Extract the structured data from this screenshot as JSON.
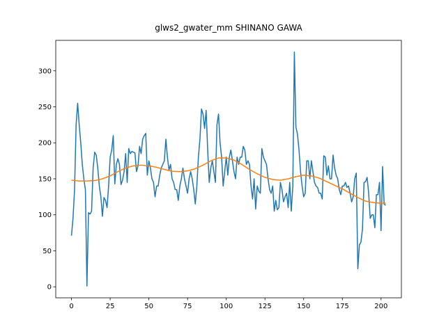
{
  "chart_data": {
    "type": "line",
    "title": "glws2_gwater_mm SHINANO GAWA",
    "xlim": [
      -10.15,
      213.15
    ],
    "ylim": [
      -15.3,
      342.3
    ],
    "xticks": [
      0,
      25,
      50,
      75,
      100,
      125,
      150,
      175,
      200
    ],
    "yticks": [
      0,
      50,
      100,
      150,
      200,
      250,
      300
    ],
    "grid": false,
    "series": [
      {
        "color": "#1f77b4",
        "x": [
          0,
          1,
          2,
          3,
          4,
          5,
          6,
          7,
          8,
          9,
          10,
          11,
          12,
          13,
          14,
          15,
          16,
          17,
          18,
          19,
          20,
          21,
          22,
          23,
          24,
          25,
          26,
          27,
          28,
          29,
          30,
          31,
          32,
          33,
          34,
          35,
          36,
          37,
          38,
          39,
          40,
          41,
          42,
          43,
          44,
          45,
          46,
          47,
          48,
          49,
          50,
          51,
          52,
          53,
          54,
          55,
          56,
          57,
          58,
          59,
          60,
          61,
          62,
          63,
          64,
          65,
          66,
          67,
          68,
          69,
          70,
          71,
          72,
          73,
          74,
          75,
          76,
          77,
          78,
          79,
          80,
          81,
          82,
          83,
          84,
          85,
          86,
          87,
          88,
          89,
          90,
          91,
          92,
          93,
          94,
          95,
          96,
          97,
          98,
          99,
          100,
          101,
          102,
          103,
          104,
          105,
          106,
          107,
          108,
          109,
          110,
          111,
          112,
          113,
          114,
          115,
          116,
          117,
          118,
          119,
          120,
          121,
          122,
          123,
          124,
          125,
          126,
          127,
          128,
          129,
          130,
          131,
          132,
          133,
          134,
          135,
          136,
          137,
          138,
          139,
          140,
          141,
          142,
          143,
          144,
          145,
          146,
          147,
          148,
          149,
          150,
          151,
          152,
          153,
          154,
          155,
          156,
          157,
          158,
          159,
          160,
          161,
          162,
          163,
          164,
          165,
          166,
          167,
          168,
          169,
          170,
          171,
          172,
          173,
          174,
          175,
          176,
          177,
          178,
          179,
          180,
          181,
          182,
          183,
          184,
          185,
          186,
          187,
          188,
          189,
          190,
          191,
          192,
          193,
          194,
          195,
          196,
          197,
          198,
          199,
          200,
          201,
          202,
          203
        ],
        "values": [
          71,
          95,
          135,
          225,
          255,
          225,
          200,
          170,
          150,
          135,
          1,
          103,
          101,
          105,
          165,
          187,
          183,
          165,
          140,
          125,
          98,
          124,
          120,
          110,
          140,
          180,
          190,
          210,
          143,
          170,
          178,
          170,
          142,
          148,
          160,
          185,
          145,
          192,
          185,
          188,
          187,
          186,
          160,
          168,
          195,
          185,
          205,
          210,
          213,
          155,
          175,
          165,
          150,
          145,
          125,
          140,
          140,
          155,
          165,
          170,
          175,
          205,
          180,
          162,
          170,
          150,
          145,
          135,
          135,
          120,
          140,
          150,
          165,
          150,
          140,
          130,
          150,
          160,
          150,
          135,
          115,
          140,
          180,
          205,
          247,
          240,
          220,
          245,
          190,
          145,
          165,
          175,
          160,
          145,
          225,
          240,
          200,
          180,
          140,
          160,
          180,
          155,
          180,
          190,
          175,
          160,
          150,
          180,
          170,
          180,
          180,
          195,
          190,
          170,
          175,
          170,
          140,
          122,
          150,
          108,
          140,
          133,
          130,
          192,
          180,
          175,
          170,
          150,
          135,
          130,
          140,
          105,
          120,
          107,
          110,
          145,
          135,
          118,
          125,
          130,
          110,
          145,
          105,
          140,
          326,
          222,
          212,
          190,
          160,
          140,
          125,
          130,
          175,
          175,
          150,
          175,
          160,
          145,
          140,
          138,
          130,
          130,
          122,
          182,
          180,
          155,
          168,
          150,
          150,
          183,
          165,
          155,
          150,
          135,
          128,
          140,
          140,
          145,
          138,
          140,
          130,
          118,
          125,
          150,
          158,
          25,
          58,
          62,
          80,
          145,
          146,
          152,
          130,
          95,
          100,
          100,
          82,
          128,
          128,
          145,
          78,
          167,
          115,
          113
        ]
      },
      {
        "color": "#ff7f0e",
        "x": [
          0,
          5,
          10,
          15,
          20,
          25,
          30,
          35,
          40,
          45,
          50,
          55,
          60,
          65,
          70,
          75,
          80,
          85,
          90,
          95,
          100,
          105,
          110,
          115,
          120,
          125,
          130,
          135,
          140,
          145,
          150,
          155,
          160,
          165,
          170,
          175,
          180,
          185,
          190,
          195,
          200,
          203
        ],
        "values": [
          148,
          147,
          147,
          147.5,
          150,
          154,
          160,
          165,
          168,
          169,
          168,
          166,
          163,
          160.5,
          160,
          161,
          164,
          169,
          175,
          179,
          179,
          176,
          170,
          163,
          157,
          152,
          149,
          148,
          150,
          153,
          155,
          154,
          151,
          146,
          141,
          136,
          130,
          124,
          119,
          117,
          116,
          116
        ]
      }
    ]
  }
}
